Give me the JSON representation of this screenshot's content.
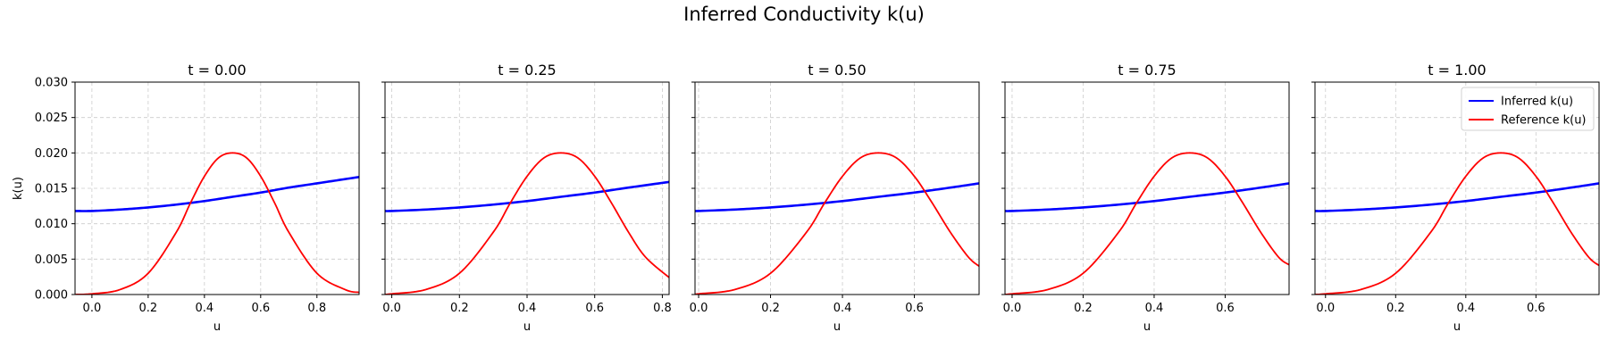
{
  "figure": {
    "title": "Inferred Conductivity k(u)"
  },
  "colors": {
    "inferred": "#0000ff",
    "reference": "#ff0000",
    "grid": "#cccccc",
    "frame": "#000000"
  },
  "legend": {
    "placement": "top-right",
    "panel": 4,
    "items": [
      {
        "label": "Inferred k(u)",
        "color": "#0000ff"
      },
      {
        "label": "Reference k(u)",
        "color": "#ff0000"
      }
    ]
  },
  "chart_data": [
    {
      "type": "line",
      "title": "t = 0.00",
      "xlabel": "u",
      "ylabel": "k(u)",
      "xlim": [
        -0.06,
        0.95
      ],
      "ylim": [
        0.0,
        0.03
      ],
      "xticks": [
        0.0,
        0.2,
        0.4,
        0.6,
        0.8
      ],
      "xtick_labels": [
        "0.0",
        "0.2",
        "0.4",
        "0.6",
        "0.8"
      ],
      "yticks": [
        0.0,
        0.005,
        0.01,
        0.015,
        0.02,
        0.025,
        0.03
      ],
      "ytick_labels": [
        "0.000",
        "0.005",
        "0.010",
        "0.015",
        "0.020",
        "0.025",
        "0.030"
      ],
      "grid": true,
      "series": [
        {
          "name": "Inferred k(u)",
          "color": "#0000ff",
          "x": [
            -0.06,
            0.0,
            0.1,
            0.2,
            0.3,
            0.4,
            0.5,
            0.6,
            0.7,
            0.8,
            0.9,
            0.95
          ],
          "y": [
            0.0118,
            0.0118,
            0.012,
            0.0123,
            0.0127,
            0.0132,
            0.0138,
            0.0144,
            0.0151,
            0.0157,
            0.0163,
            0.0166
          ]
        },
        {
          "name": "Reference k(u)",
          "color": "#ff0000",
          "x": [
            -0.06,
            0.0,
            0.1,
            0.2,
            0.3,
            0.35,
            0.4,
            0.45,
            0.5,
            0.55,
            0.6,
            0.65,
            0.7,
            0.8,
            0.9,
            0.95
          ],
          "y": [
            0.0,
            0.0001,
            0.0007,
            0.003,
            0.0088,
            0.0129,
            0.0167,
            0.0193,
            0.02,
            0.0193,
            0.0167,
            0.0129,
            0.0088,
            0.003,
            0.0007,
            0.0003
          ]
        }
      ]
    },
    {
      "type": "line",
      "title": "t = 0.25",
      "xlabel": "u",
      "ylabel": "",
      "xlim": [
        -0.02,
        0.82
      ],
      "ylim": [
        0.0,
        0.03
      ],
      "xticks": [
        0.0,
        0.2,
        0.4,
        0.6,
        0.8
      ],
      "xtick_labels": [
        "0.0",
        "0.2",
        "0.4",
        "0.6",
        "0.8"
      ],
      "yticks": [
        0.0,
        0.005,
        0.01,
        0.015,
        0.02,
        0.025,
        0.03
      ],
      "ytick_labels": [],
      "grid": true,
      "series": [
        {
          "name": "Inferred k(u)",
          "color": "#0000ff",
          "x": [
            -0.02,
            0.0,
            0.1,
            0.2,
            0.3,
            0.4,
            0.5,
            0.6,
            0.7,
            0.82
          ],
          "y": [
            0.0118,
            0.0118,
            0.012,
            0.0123,
            0.0127,
            0.0132,
            0.0138,
            0.0144,
            0.0151,
            0.0159
          ]
        },
        {
          "name": "Reference k(u)",
          "color": "#ff0000",
          "x": [
            -0.02,
            0.0,
            0.1,
            0.2,
            0.3,
            0.35,
            0.4,
            0.45,
            0.5,
            0.55,
            0.6,
            0.65,
            0.7,
            0.75,
            0.82
          ],
          "y": [
            0.0,
            0.0001,
            0.0007,
            0.003,
            0.0088,
            0.0129,
            0.0167,
            0.0193,
            0.02,
            0.0193,
            0.0167,
            0.0129,
            0.0088,
            0.0053,
            0.0024
          ]
        }
      ]
    },
    {
      "type": "line",
      "title": "t = 0.50",
      "xlabel": "u",
      "ylabel": "",
      "xlim": [
        -0.01,
        0.78
      ],
      "ylim": [
        0.0,
        0.03
      ],
      "xticks": [
        0.0,
        0.2,
        0.4,
        0.6
      ],
      "xtick_labels": [
        "0.0",
        "0.2",
        "0.4",
        "0.6"
      ],
      "yticks": [
        0.0,
        0.005,
        0.01,
        0.015,
        0.02,
        0.025,
        0.03
      ],
      "ytick_labels": [],
      "grid": true,
      "series": [
        {
          "name": "Inferred k(u)",
          "color": "#0000ff",
          "x": [
            -0.01,
            0.0,
            0.1,
            0.2,
            0.3,
            0.4,
            0.5,
            0.6,
            0.7,
            0.78
          ],
          "y": [
            0.0118,
            0.0118,
            0.012,
            0.0123,
            0.0127,
            0.0132,
            0.0138,
            0.0144,
            0.0151,
            0.0157
          ]
        },
        {
          "name": "Reference k(u)",
          "color": "#ff0000",
          "x": [
            -0.01,
            0.0,
            0.1,
            0.2,
            0.3,
            0.35,
            0.4,
            0.45,
            0.5,
            0.55,
            0.6,
            0.65,
            0.7,
            0.75,
            0.78
          ],
          "y": [
            0.0,
            0.0001,
            0.0007,
            0.003,
            0.0088,
            0.0129,
            0.0167,
            0.0193,
            0.02,
            0.0193,
            0.0167,
            0.0129,
            0.0088,
            0.0053,
            0.004
          ]
        }
      ]
    },
    {
      "type": "line",
      "title": "t = 0.75",
      "xlabel": "u",
      "ylabel": "",
      "xlim": [
        -0.02,
        0.78
      ],
      "ylim": [
        0.0,
        0.03
      ],
      "xticks": [
        0.0,
        0.2,
        0.4,
        0.6
      ],
      "xtick_labels": [
        "0.0",
        "0.2",
        "0.4",
        "0.6"
      ],
      "yticks": [
        0.0,
        0.005,
        0.01,
        0.015,
        0.02,
        0.025,
        0.03
      ],
      "ytick_labels": [],
      "grid": true,
      "series": [
        {
          "name": "Inferred k(u)",
          "color": "#0000ff",
          "x": [
            -0.02,
            0.0,
            0.1,
            0.2,
            0.3,
            0.4,
            0.5,
            0.6,
            0.7,
            0.78
          ],
          "y": [
            0.0118,
            0.0118,
            0.012,
            0.0123,
            0.0127,
            0.0132,
            0.0138,
            0.0144,
            0.0151,
            0.0157
          ]
        },
        {
          "name": "Reference k(u)",
          "color": "#ff0000",
          "x": [
            -0.02,
            0.0,
            0.1,
            0.2,
            0.3,
            0.35,
            0.4,
            0.45,
            0.5,
            0.55,
            0.6,
            0.65,
            0.7,
            0.75,
            0.78
          ],
          "y": [
            0.0,
            0.0001,
            0.0007,
            0.003,
            0.0088,
            0.0129,
            0.0167,
            0.0193,
            0.02,
            0.0193,
            0.0167,
            0.0129,
            0.0088,
            0.0053,
            0.0042
          ]
        }
      ]
    },
    {
      "type": "line",
      "title": "t = 1.00",
      "xlabel": "u",
      "ylabel": "",
      "xlim": [
        -0.03,
        0.78
      ],
      "ylim": [
        0.0,
        0.03
      ],
      "xticks": [
        0.0,
        0.2,
        0.4,
        0.6
      ],
      "xtick_labels": [
        "0.0",
        "0.2",
        "0.4",
        "0.6"
      ],
      "yticks": [
        0.0,
        0.005,
        0.01,
        0.015,
        0.02,
        0.025,
        0.03
      ],
      "ytick_labels": [],
      "grid": true,
      "series": [
        {
          "name": "Inferred k(u)",
          "color": "#0000ff",
          "x": [
            -0.03,
            0.0,
            0.1,
            0.2,
            0.3,
            0.4,
            0.5,
            0.6,
            0.7,
            0.78
          ],
          "y": [
            0.0118,
            0.0118,
            0.012,
            0.0123,
            0.0127,
            0.0132,
            0.0138,
            0.0144,
            0.0151,
            0.0157
          ]
        },
        {
          "name": "Reference k(u)",
          "color": "#ff0000",
          "x": [
            -0.03,
            0.0,
            0.1,
            0.2,
            0.3,
            0.35,
            0.4,
            0.45,
            0.5,
            0.55,
            0.6,
            0.65,
            0.7,
            0.75,
            0.78
          ],
          "y": [
            0.0,
            0.0001,
            0.0007,
            0.003,
            0.0088,
            0.0129,
            0.0167,
            0.0193,
            0.02,
            0.0193,
            0.0167,
            0.0129,
            0.0088,
            0.0053,
            0.0041
          ]
        }
      ]
    }
  ]
}
